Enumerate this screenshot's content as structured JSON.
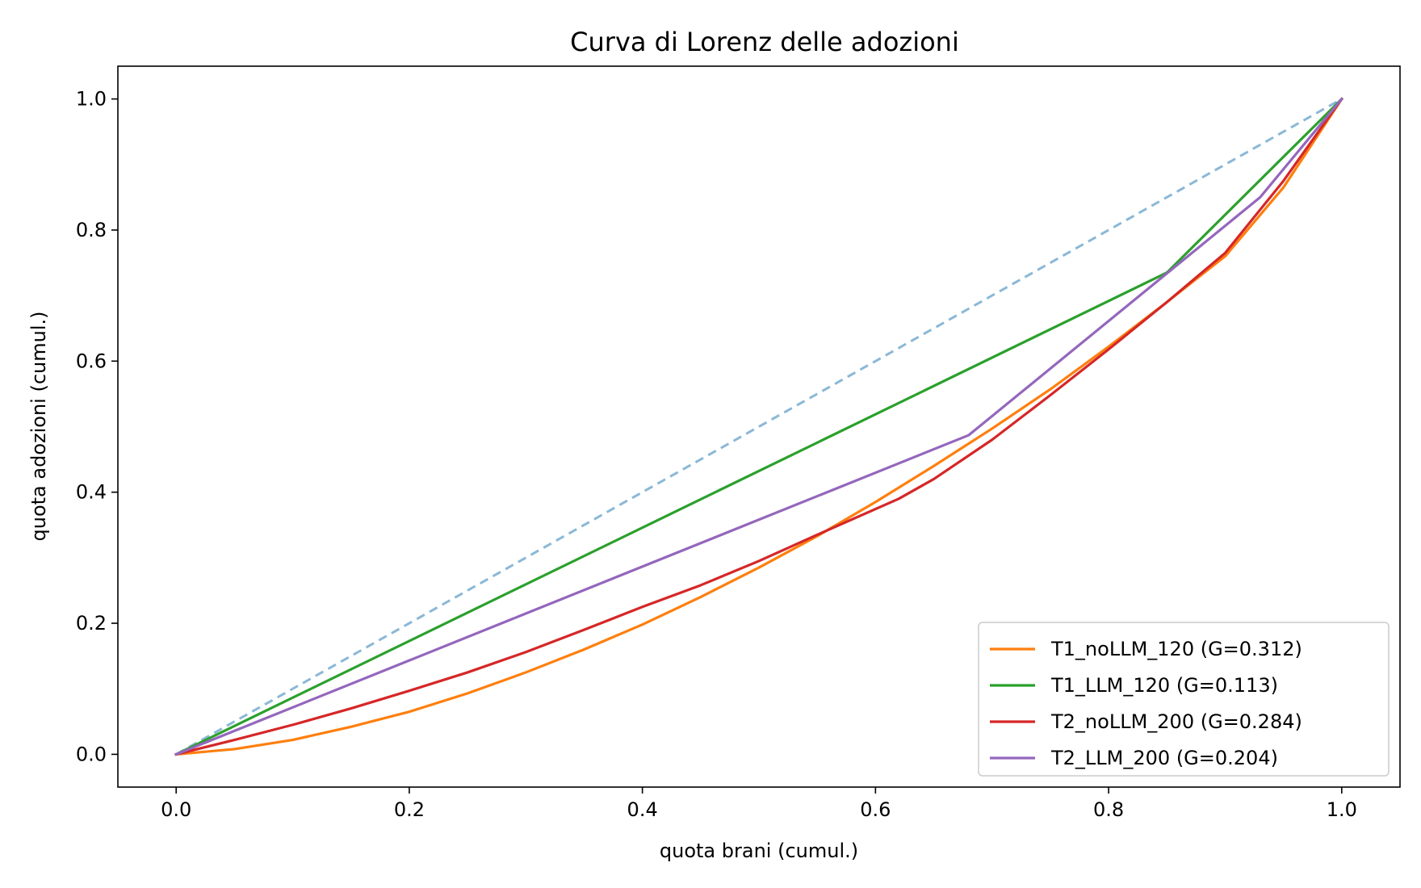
{
  "chart_data": {
    "type": "line",
    "title": "Curva di Lorenz delle adozioni",
    "xlabel": "quota brani (cumul.)",
    "ylabel": "quota adozioni (cumul.)",
    "xlim": [
      -0.05,
      1.05
    ],
    "ylim": [
      -0.05,
      1.05
    ],
    "xticks": [
      "0.0",
      "0.2",
      "0.4",
      "0.6",
      "0.8",
      "1.0"
    ],
    "yticks": [
      "0.0",
      "0.2",
      "0.4",
      "0.6",
      "0.8",
      "1.0"
    ],
    "grid": false,
    "legend_position": "lower-right",
    "reference_line": {
      "style": "dashed",
      "color": "#8ab8d6",
      "x": [
        0,
        1
      ],
      "y": [
        0,
        1
      ]
    },
    "series": [
      {
        "name": "T1_noLLM_120 (G=0.312)",
        "color": "#ff7f0e",
        "x": [
          0,
          0.05,
          0.1,
          0.15,
          0.2,
          0.25,
          0.3,
          0.35,
          0.4,
          0.45,
          0.5,
          0.55,
          0.6,
          0.65,
          0.7,
          0.75,
          0.8,
          0.85,
          0.9,
          0.95,
          1.0
        ],
        "y": [
          0,
          0.008,
          0.022,
          0.042,
          0.065,
          0.093,
          0.125,
          0.16,
          0.198,
          0.24,
          0.285,
          0.333,
          0.385,
          0.44,
          0.497,
          0.557,
          0.622,
          0.69,
          0.76,
          0.865,
          1.0
        ]
      },
      {
        "name": "T1_LLM_120 (G=0.113)",
        "color": "#2ca02c",
        "x": [
          0,
          0.85,
          1.0
        ],
        "y": [
          0,
          0.735,
          1.0
        ]
      },
      {
        "name": "T2_noLLM_200 (G=0.284)",
        "color": "#d62728",
        "x": [
          0,
          0.05,
          0.1,
          0.15,
          0.2,
          0.25,
          0.3,
          0.35,
          0.4,
          0.45,
          0.5,
          0.55,
          0.62,
          0.65,
          0.7,
          0.75,
          0.8,
          0.85,
          0.9,
          0.95,
          1.0
        ],
        "y": [
          0,
          0.022,
          0.045,
          0.07,
          0.097,
          0.125,
          0.156,
          0.19,
          0.225,
          0.258,
          0.295,
          0.335,
          0.39,
          0.42,
          0.48,
          0.548,
          0.618,
          0.69,
          0.765,
          0.875,
          1.0
        ]
      },
      {
        "name": "T2_LLM_200 (G=0.204)",
        "color": "#9467bd",
        "x": [
          0,
          0.68,
          0.93,
          1.0
        ],
        "y": [
          0,
          0.487,
          0.85,
          1.0
        ]
      }
    ]
  }
}
